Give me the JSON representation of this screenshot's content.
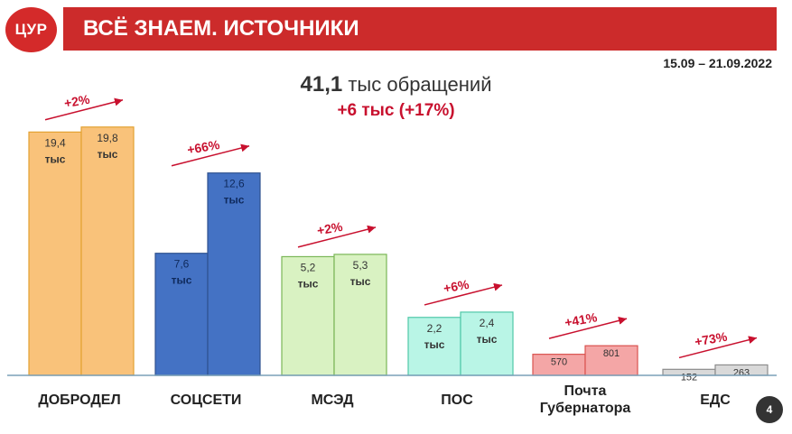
{
  "header": {
    "logo": "ЦУР",
    "title": "ВСЁ ЗНАЕМ. ИСТОЧНИКИ",
    "date_range": "15.09 – 21.09.2022"
  },
  "summary": {
    "total_value": "41,1",
    "total_label": "тыс обращений",
    "delta": "+6 тыс  (+17%)"
  },
  "page_number": "4",
  "colors": {
    "red": "#c8102e",
    "title_bar": "#cc2b2b"
  },
  "chart_data": {
    "type": "bar",
    "categories": [
      "ДОБРОДЕЛ",
      "СОЦСЕТИ",
      "МСЭД",
      "ПОС",
      "Почта Губернатора",
      "ЕДС"
    ],
    "series": [
      {
        "values": [
          19.4,
          7.6,
          5.2,
          2.2,
          0.57,
          0.152
        ]
      },
      {
        "values": [
          19.8,
          12.6,
          5.3,
          2.4,
          0.801,
          0.263
        ]
      }
    ],
    "labels_prev": [
      "19,4 тыс",
      "7,6 тыс",
      "5,2 тыс",
      "2,2 тыс",
      "570",
      "152"
    ],
    "labels_curr": [
      "19,8 тыс",
      "12,6 тыс",
      "5,3 тыс",
      "2,4 тыс",
      "801",
      "263"
    ],
    "changes": [
      "+2%",
      "+66%",
      "+2%",
      "+6%",
      "+41%",
      "+73%"
    ],
    "fills": [
      [
        "#f9c27a",
        "#f9c27a"
      ],
      [
        "#4472c4",
        "#4472c4"
      ],
      [
        "#d9f2c2",
        "#d9f2c2"
      ],
      [
        "#b9f5e6",
        "#b9f5e6"
      ],
      [
        "#f4a6a6",
        "#f4a6a6"
      ],
      [
        "#d9d9d9",
        "#d9d9d9"
      ]
    ],
    "strokes": [
      "#e3a232",
      "#2f528f",
      "#7ab656",
      "#4fc7a8",
      "#d9534f",
      "#8c8c8c"
    ]
  }
}
